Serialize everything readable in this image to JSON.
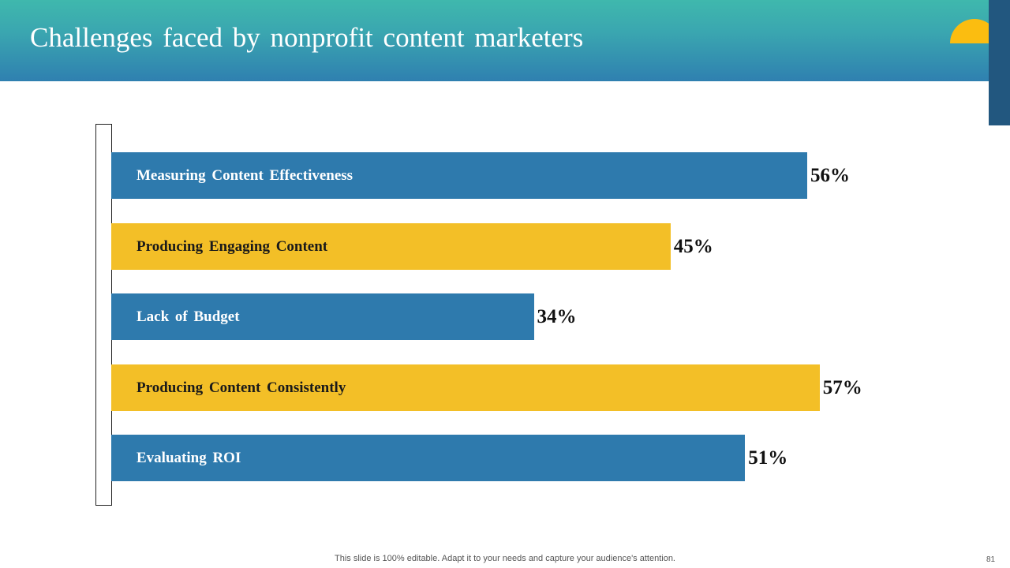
{
  "slide": {
    "title": "Challenges faced by nonprofit content marketers",
    "footer": "This slide is 100% editable. Adapt it to your needs and capture your audience's attention.",
    "page_number": "81"
  },
  "colors": {
    "blue": "#2e7aad",
    "yellow": "#f3bf27",
    "label_on_blue": "#ffffff",
    "label_on_yellow": "#1a1a1a"
  },
  "chart_data": {
    "type": "bar",
    "orientation": "horizontal",
    "title": "Challenges faced by nonprofit content marketers",
    "categories": [
      "Measuring Content Effectiveness",
      "Producing Engaging Content",
      "Lack of Budget",
      "Producing Content Consistently",
      "Evaluating ROI"
    ],
    "values": [
      56,
      45,
      34,
      57,
      51
    ],
    "value_labels": [
      "56%",
      "45%",
      "34%",
      "57%",
      "51%"
    ],
    "bar_colors": [
      "blue",
      "yellow",
      "blue",
      "yellow",
      "blue"
    ],
    "xlim": [
      0,
      100
    ],
    "xlabel": "",
    "ylabel": "",
    "grid": false,
    "legend": "none"
  }
}
